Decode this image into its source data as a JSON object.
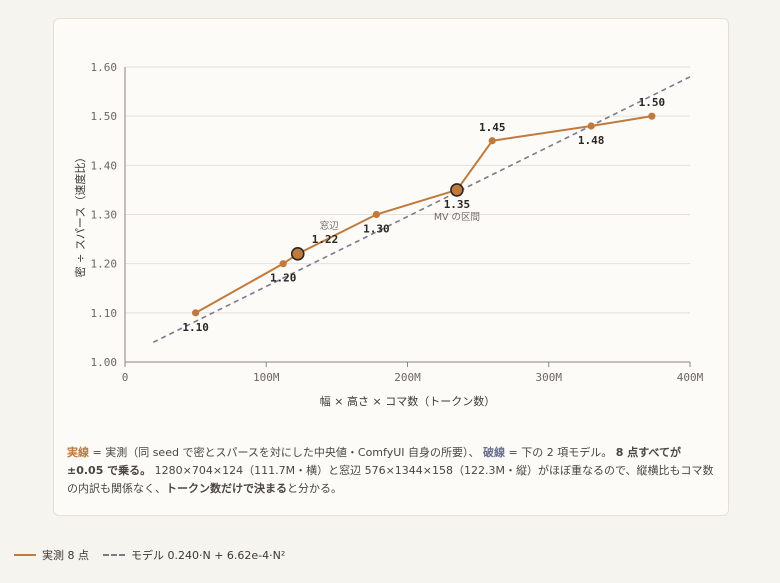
{
  "chart_data": {
    "type": "line",
    "xlabel": "幅 × 高さ × コマ数（トークン数）",
    "ylabel": "密 ÷ スパース（速度比）",
    "xlim": [
      0,
      400000000
    ],
    "ylim": [
      1.0,
      1.6
    ],
    "xticks": [
      {
        "value": 0,
        "label": "0"
      },
      {
        "value": 100000000,
        "label": "100M"
      },
      {
        "value": 200000000,
        "label": "200M"
      },
      {
        "value": 300000000,
        "label": "300M"
      },
      {
        "value": 400000000,
        "label": "400M"
      }
    ],
    "yticks": [
      {
        "value": 1.0,
        "label": "1.00"
      },
      {
        "value": 1.1,
        "label": "1.10"
      },
      {
        "value": 1.2,
        "label": "1.20"
      },
      {
        "value": 1.3,
        "label": "1.30"
      },
      {
        "value": 1.4,
        "label": "1.40"
      },
      {
        "value": 1.5,
        "label": "1.50"
      },
      {
        "value": 1.6,
        "label": "1.60"
      }
    ],
    "grid": true,
    "series": [
      {
        "name": "実測 8 点",
        "color": "#c07a3c",
        "style": "solid",
        "points": [
          {
            "x": 50000000,
            "y": 1.1,
            "label": "1.10",
            "label_pos": "below"
          },
          {
            "x": 112000000,
            "y": 1.2,
            "label": "1.20",
            "label_pos": "below"
          },
          {
            "x": 122300000,
            "y": 1.22,
            "label": "1.22",
            "label_pos": "above-right",
            "highlight": true,
            "note": "窓辺"
          },
          {
            "x": 178000000,
            "y": 1.3,
            "label": "1.30",
            "label_pos": "below"
          },
          {
            "x": 235000000,
            "y": 1.35,
            "label": "1.35",
            "label_pos": "below",
            "highlight": true,
            "note": "MV の区間"
          },
          {
            "x": 260000000,
            "y": 1.45,
            "label": "1.45",
            "label_pos": "above"
          },
          {
            "x": 330000000,
            "y": 1.48,
            "label": "1.48",
            "label_pos": "below"
          },
          {
            "x": 373000000,
            "y": 1.5,
            "label": "1.50",
            "label_pos": "above"
          }
        ]
      },
      {
        "name": "モデル 0.240·N + 6.62e-4·N²",
        "color": "#7a7a8c",
        "style": "dashed",
        "points": [
          {
            "x": 20000000,
            "y": 1.04
          },
          {
            "x": 400000000,
            "y": 1.58
          }
        ]
      }
    ]
  },
  "caption": {
    "solid_term": "実線",
    "part1": " = 実測（同 seed で密とスパースを対にした中央値・ComfyUI 自身の所要）、",
    "dashed_term": "破線",
    "part2": " = 下の 2 項モデル。",
    "strong1": "8 点すべてが ±0.05 で乗る。",
    "part3": " 1280×704×124（111.7M・横）と窓辺 576×1344×158（122.3M・縦）がほぼ重なるので、縦横比もコマ数の内訳も関係なく、",
    "strong2": "トークン数だけで決まる",
    "part4": "と分かる。"
  },
  "legend": {
    "solid_label": "実測 8 点",
    "dashed_label": "モデル 0.240·N + 6.62e-4·N²"
  },
  "colors": {
    "solid_accent": "#c07a3c",
    "dashed_accent": "#6b6f8f"
  }
}
